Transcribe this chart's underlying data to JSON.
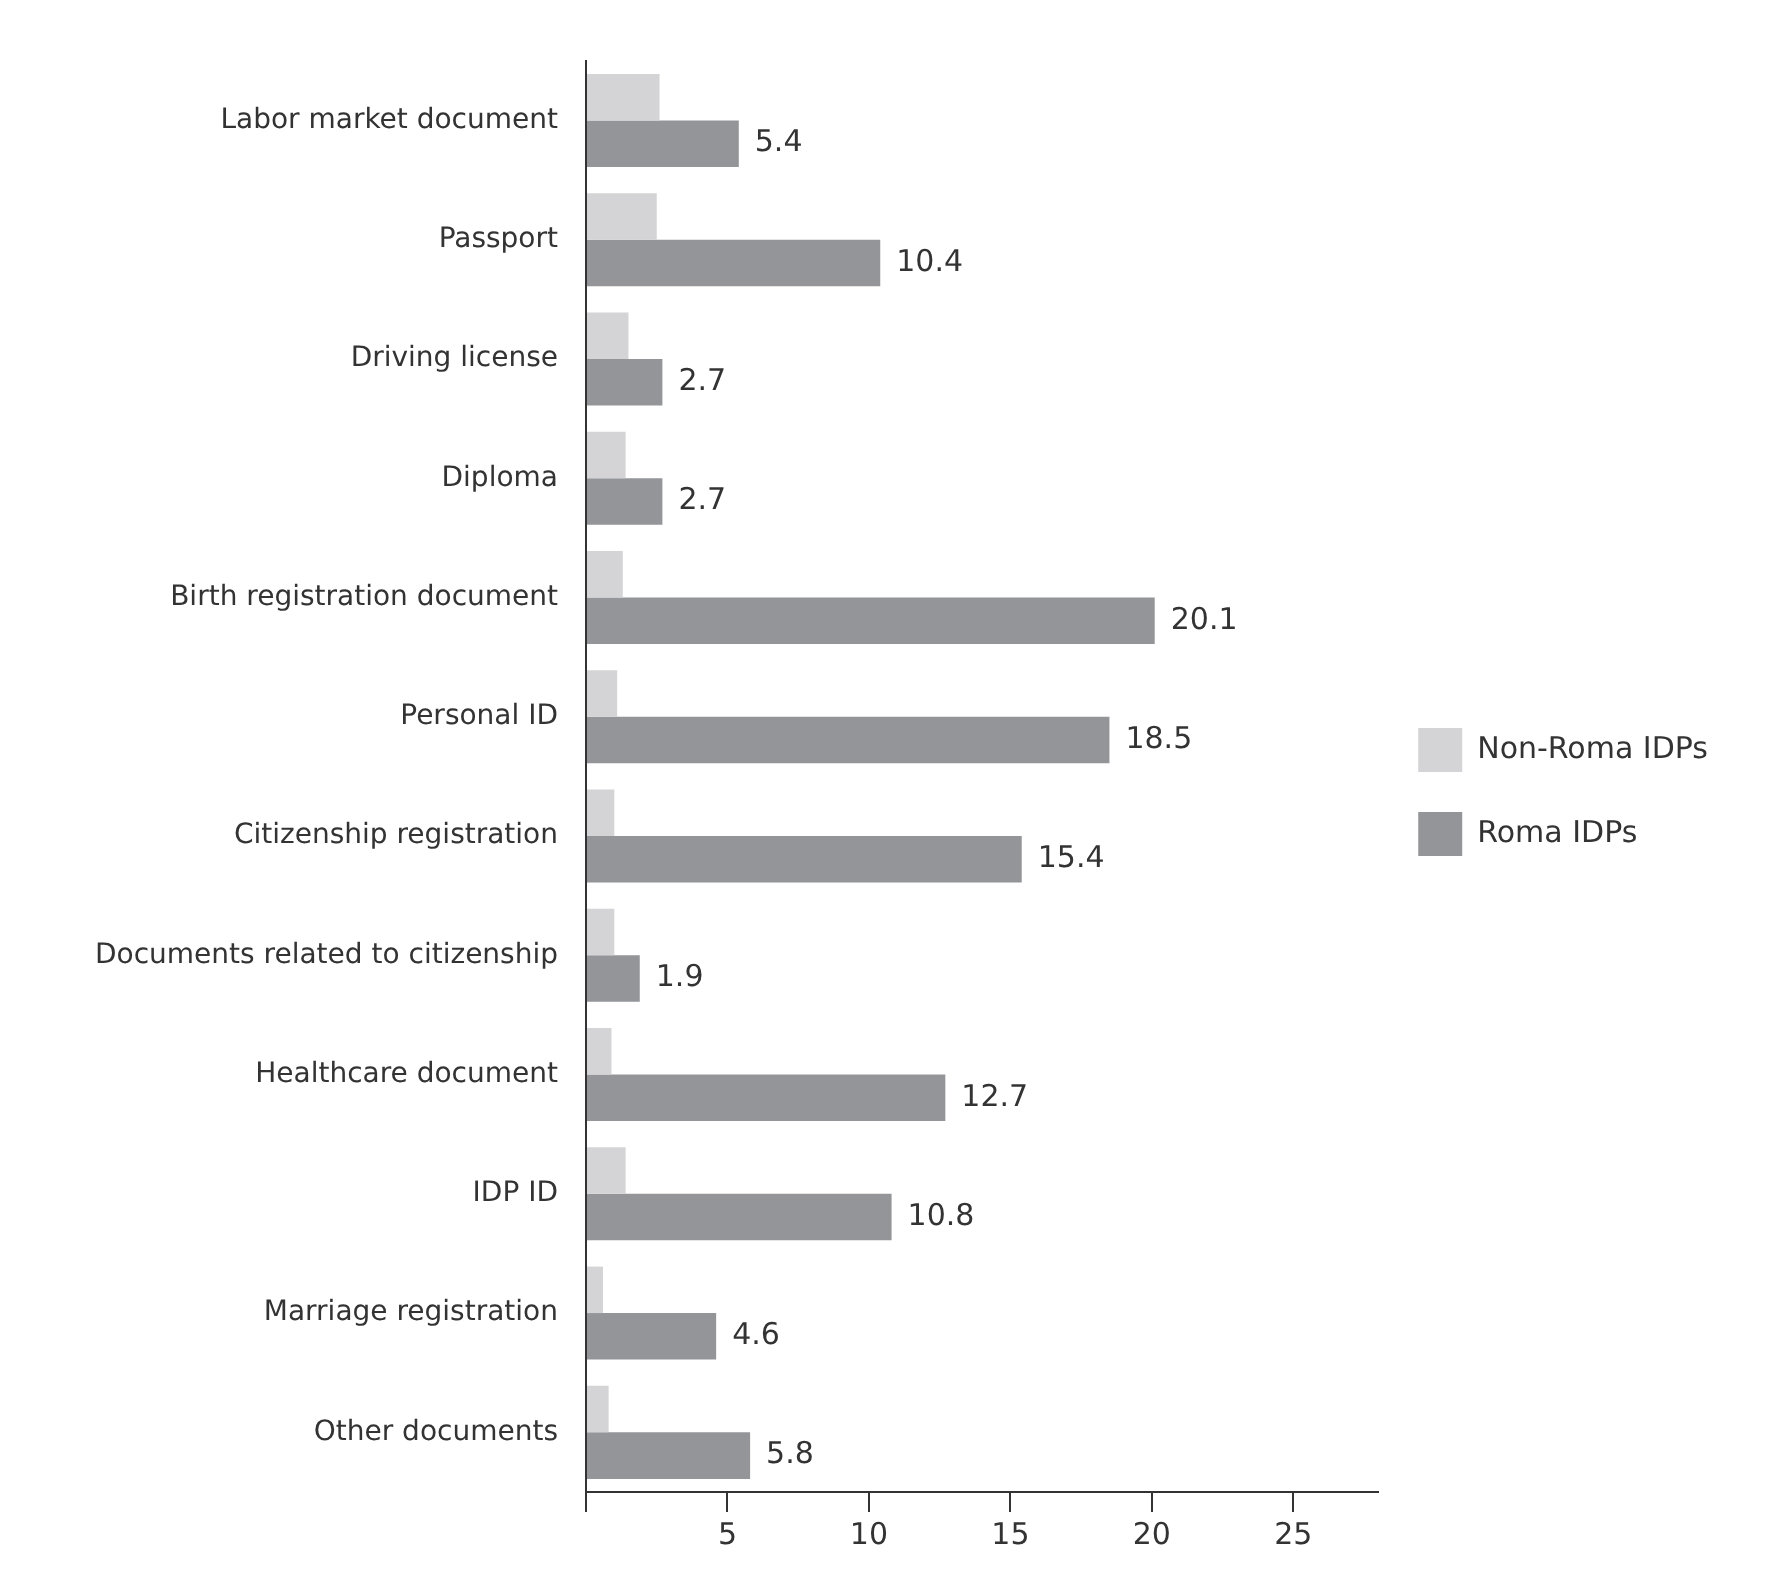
{
  "chart_data": {
    "type": "bar",
    "orientation": "horizontal",
    "categories": [
      "Labor market document",
      "Passport",
      "Driving license",
      "Diploma",
      "Birth registration document",
      "Personal ID",
      "Citizenship registration",
      "Documents related to citizenship",
      "Healthcare document",
      "IDP ID",
      "Marriage registration",
      "Other documents"
    ],
    "series": [
      {
        "name": "Non-Roma IDPs",
        "color": "#d4d4d6",
        "values": [
          2.6,
          2.5,
          1.5,
          1.4,
          1.3,
          1.1,
          1.0,
          1.0,
          0.9,
          1.4,
          0.6,
          0.8
        ]
      },
      {
        "name": "Roma IDPs",
        "color": "#939598",
        "values": [
          5.4,
          10.4,
          2.7,
          2.7,
          20.1,
          18.5,
          15.4,
          1.9,
          12.7,
          10.8,
          4.6,
          5.8
        ],
        "value_labels": [
          "5.4",
          "10.4",
          "2.7",
          "2.7",
          "20.1",
          "18.5",
          "15.4",
          "1.9",
          "12.7",
          "10.8",
          "4.6",
          "5.8"
        ]
      }
    ],
    "xlim": [
      0,
      28
    ],
    "xticks": [
      {
        "value": 0,
        "label": null
      },
      5,
      10,
      15,
      20,
      25
    ],
    "grid": false,
    "legend": "right"
  }
}
